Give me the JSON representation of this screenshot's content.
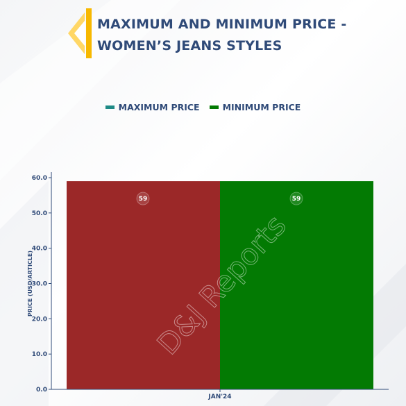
{
  "header": {
    "title_line1": "MAXIMUM AND MINIMUM PRICE -",
    "title_line2": "WOMEN’S JEANS STYLES"
  },
  "watermark": "D&J Reports",
  "colors": {
    "max": "#9b2828",
    "min": "#037a03",
    "legend_max": "#1e8a86",
    "legend_min": "#037a03",
    "text": "#2f4a78",
    "accent": "#f7b800"
  },
  "chart_data": {
    "type": "bar",
    "categories": [
      "JAN'24"
    ],
    "series": [
      {
        "name": "MAXIMUM PRICE",
        "values": [
          59
        ]
      },
      {
        "name": "MINIMUM PRICE",
        "values": [
          59
        ]
      }
    ],
    "data_labels": [
      "59",
      "59"
    ],
    "ylabel": "PRICE (USD/ARTICLE)",
    "xlabel": "",
    "ylim": [
      0,
      60
    ],
    "yticks": [
      "0.0",
      "10.0",
      "20.0",
      "30.0",
      "40.0",
      "50.0",
      "60.0"
    ],
    "legend_position": "top-center",
    "grid": false
  }
}
